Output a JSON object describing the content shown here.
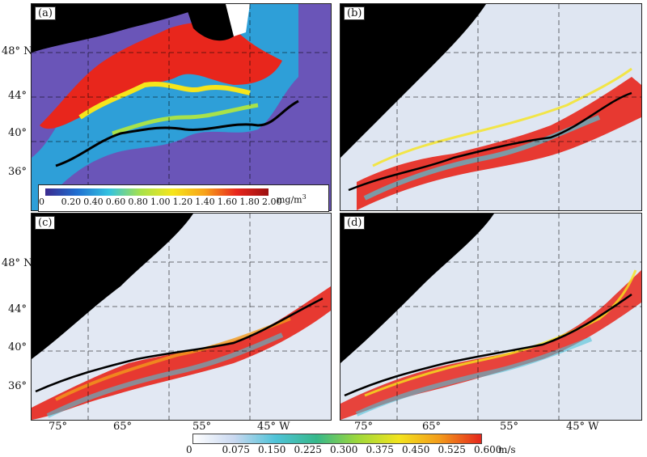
{
  "panels": [
    {
      "label": "(a)"
    },
    {
      "label": "(b)"
    },
    {
      "label": "(c)"
    },
    {
      "label": "(d)"
    }
  ],
  "lat_labels": [
    "48° N",
    "44°",
    "40°",
    "36°"
  ],
  "lon_labels": [
    "75°",
    "65°",
    "55°",
    "45° W"
  ],
  "chl_colorbar": {
    "ticks": [
      "0",
      "0.20",
      "0.40",
      "0.60",
      "0.80",
      "1.00",
      "1.20",
      "1.40",
      "1.60",
      "1.80",
      "2.00"
    ],
    "unit": "mg/m",
    "unit_sup": "3",
    "colors": [
      "#3b2a8f",
      "#1f6fd1",
      "#33c3e0",
      "#a8e24a",
      "#f6e51b",
      "#f7a21a",
      "#e8261c",
      "#9b1010"
    ]
  },
  "speed_colorbar": {
    "ticks": [
      "0",
      "0.075",
      "0.150",
      "0.225",
      "0.300",
      "0.375",
      "0.450",
      "0.525",
      "0.600"
    ],
    "unit": "m/s",
    "colors": [
      "#ffffff",
      "#c9d8f0",
      "#4fc3d8",
      "#36b88a",
      "#9ed83a",
      "#f3e41e",
      "#f39a1b",
      "#e5261c"
    ]
  }
}
